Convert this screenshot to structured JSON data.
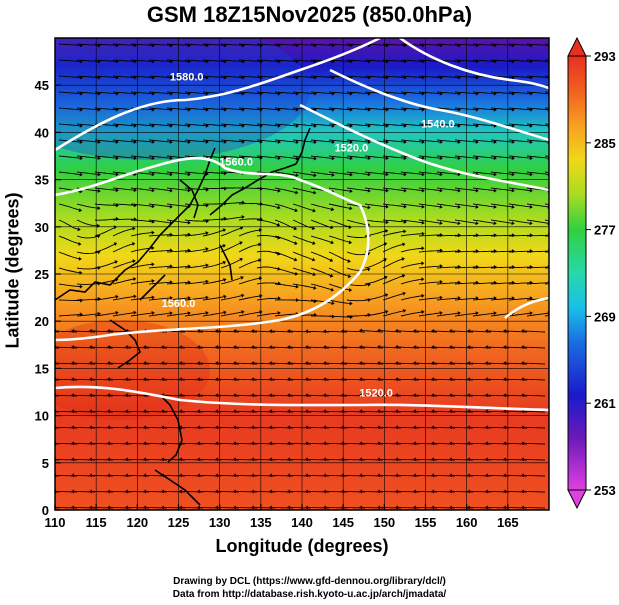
{
  "title": "GSM 18Z15Nov2025 (850.0hPa)",
  "xlabel": "Longitude (degrees)",
  "ylabel": "Latitude  (degrees)",
  "credits": [
    "Drawing by DCL (https://www.gfd-dennou.org/library/dcl/)",
    "Data from http://database.rish.kyoto-u.ac.jp/arch/jmadata/"
  ],
  "map": {
    "lon_range": [
      110,
      170
    ],
    "lat_range": [
      0,
      50
    ],
    "lon_ticks": [
      "110",
      "115",
      "120",
      "125",
      "130",
      "135",
      "140",
      "145",
      "150",
      "155",
      "160",
      "165"
    ],
    "lat_ticks": [
      "0",
      "5",
      "10",
      "15",
      "20",
      "25",
      "30",
      "35",
      "40",
      "45"
    ],
    "colorbar": {
      "min": 253,
      "max": 293,
      "labels": [
        "253",
        "261",
        "269",
        "277",
        "285",
        "293"
      ],
      "colors": [
        "#e040e0",
        "#6a1ab8",
        "#1a1acc",
        "#1a6ee0",
        "#18c0e8",
        "#28d8a8",
        "#30d040",
        "#a8dc20",
        "#f0d818",
        "#f8a020",
        "#f06020",
        "#e83020"
      ]
    },
    "contour_labels": [
      {
        "text": "1580.0",
        "lon": 126,
        "lat": 45.5
      },
      {
        "text": "1560.0",
        "lon": 132,
        "lat": 36.5
      },
      {
        "text": "1540.0",
        "lon": 156.5,
        "lat": 40.5
      },
      {
        "text": "1520.0",
        "lon": 146,
        "lat": 38
      },
      {
        "text": "1560.0",
        "lon": 125,
        "lat": 21.5
      },
      {
        "text": "1520.0",
        "lon": 149,
        "lat": 12
      }
    ]
  }
}
